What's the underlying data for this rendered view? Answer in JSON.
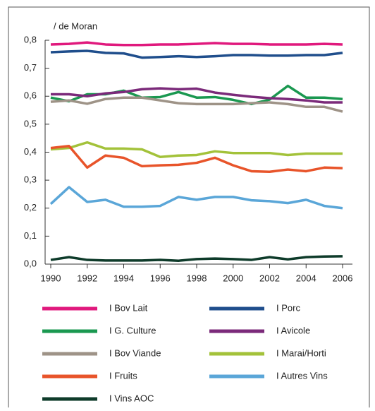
{
  "chart_data": {
    "type": "line",
    "y_label": "/ de Moran",
    "x": [
      1990,
      1991,
      1992,
      1993,
      1994,
      1995,
      1996,
      1997,
      1998,
      1999,
      2000,
      2001,
      2002,
      2003,
      2004,
      2005,
      2006
    ],
    "xlim": [
      1990,
      2006
    ],
    "xticks": [
      1990,
      1992,
      1994,
      1996,
      1998,
      2000,
      2002,
      2004,
      2006
    ],
    "ylim": [
      0,
      0.8
    ],
    "yticks": [
      {
        "value": 0,
        "label": "0,0"
      },
      {
        "value": 0.1,
        "label": "0,1"
      },
      {
        "value": 0.2,
        "label": "0,2"
      },
      {
        "value": 0.3,
        "label": "0,3"
      },
      {
        "value": 0.4,
        "label": "0,4"
      },
      {
        "value": 0.5,
        "label": "0,5"
      },
      {
        "value": 0.6,
        "label": "0,6"
      },
      {
        "value": 0.7,
        "label": "0,7"
      },
      {
        "value": 0.8,
        "label": "0,8"
      }
    ],
    "series": [
      {
        "name": "I Bov Lait",
        "color": "#e0197d",
        "values": [
          0.785,
          0.787,
          0.792,
          0.785,
          0.783,
          0.783,
          0.785,
          0.785,
          0.787,
          0.79,
          0.787,
          0.787,
          0.785,
          0.785,
          0.785,
          0.787,
          0.785
        ]
      },
      {
        "name": "I Porc",
        "color": "#1f4e8c",
        "values": [
          0.757,
          0.76,
          0.762,
          0.755,
          0.753,
          0.738,
          0.74,
          0.743,
          0.74,
          0.743,
          0.747,
          0.747,
          0.745,
          0.745,
          0.747,
          0.747,
          0.755
        ]
      },
      {
        "name": "I G. Culture",
        "color": "#1a9850",
        "values": [
          0.595,
          0.582,
          0.607,
          0.607,
          0.62,
          0.595,
          0.597,
          0.615,
          0.595,
          0.597,
          0.587,
          0.572,
          0.588,
          0.637,
          0.595,
          0.595,
          0.59
        ]
      },
      {
        "name": "I Avicole",
        "color": "#7b2a7a",
        "values": [
          0.607,
          0.607,
          0.6,
          0.61,
          0.615,
          0.625,
          0.628,
          0.625,
          0.627,
          0.613,
          0.605,
          0.598,
          0.593,
          0.59,
          0.585,
          0.578,
          0.578
        ]
      },
      {
        "name": "I Bov Viande",
        "color": "#9e9387",
        "values": [
          0.58,
          0.585,
          0.573,
          0.59,
          0.595,
          0.595,
          0.585,
          0.575,
          0.572,
          0.572,
          0.572,
          0.575,
          0.578,
          0.572,
          0.562,
          0.562,
          0.545
        ]
      },
      {
        "name": "I Marai/Horti",
        "color": "#a3c23a",
        "values": [
          0.41,
          0.415,
          0.435,
          0.413,
          0.413,
          0.41,
          0.383,
          0.388,
          0.39,
          0.403,
          0.397,
          0.397,
          0.397,
          0.39,
          0.395,
          0.395,
          0.395
        ]
      },
      {
        "name": "I Fruits",
        "color": "#e8542a",
        "values": [
          0.415,
          0.422,
          0.345,
          0.388,
          0.38,
          0.35,
          0.353,
          0.355,
          0.362,
          0.38,
          0.353,
          0.332,
          0.33,
          0.338,
          0.332,
          0.345,
          0.343
        ]
      },
      {
        "name": "I Autres Vins",
        "color": "#5aa6d8",
        "values": [
          0.215,
          0.275,
          0.222,
          0.23,
          0.205,
          0.205,
          0.208,
          0.24,
          0.23,
          0.24,
          0.24,
          0.228,
          0.225,
          0.218,
          0.23,
          0.208,
          0.2
        ]
      },
      {
        "name": "I Vins AOC",
        "color": "#0e3b2a",
        "values": [
          0.015,
          0.025,
          0.015,
          0.013,
          0.013,
          0.013,
          0.015,
          0.012,
          0.018,
          0.02,
          0.018,
          0.015,
          0.025,
          0.017,
          0.025,
          0.027,
          0.028
        ]
      }
    ]
  }
}
